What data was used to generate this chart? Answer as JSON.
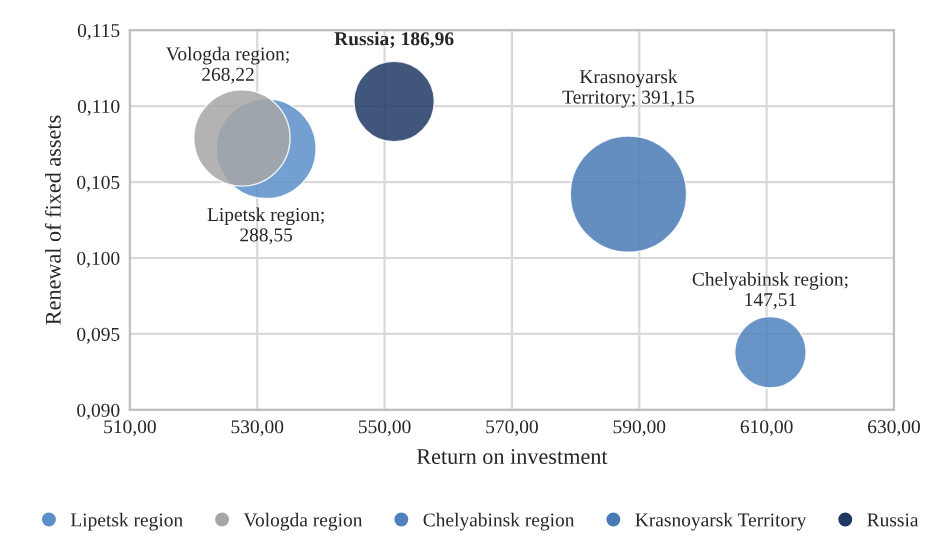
{
  "chart_data": {
    "type": "bubble",
    "xlabel": "Return on investment",
    "ylabel": "Renewal of fixed assets",
    "series": [
      {
        "name": "Lipetsk region",
        "color": "#5b8fc9",
        "x": [
          531.4
        ],
        "values": [
          0.1072
        ],
        "sizes": [
          288.55
        ],
        "value_labels": [
          "Lipetsk region;\n288,55"
        ]
      },
      {
        "name": "Vologda region",
        "color": "#a6a6a6",
        "x": [
          527.6
        ],
        "values": [
          0.1079
        ],
        "sizes": [
          268.22
        ],
        "value_labels": [
          "Vologda region;\n268,22"
        ]
      },
      {
        "name": "Chelyabinsk region",
        "color": "#4f81bd",
        "x": [
          610.6
        ],
        "values": [
          0.0938
        ],
        "sizes": [
          147.51
        ],
        "value_labels": [
          "Chelyabinsk region;\n147,51"
        ]
      },
      {
        "name": "Krasnoyarsk Territory",
        "color": "#4a7ab5",
        "x": [
          588.3
        ],
        "values": [
          0.1042
        ],
        "sizes": [
          391.15
        ],
        "value_labels": [
          "Krasnoyarsk\nTerritory; 391,15"
        ]
      },
      {
        "name": "Russia",
        "color": "#1f3864",
        "x": [
          551.5
        ],
        "values": [
          0.1103
        ],
        "sizes": [
          186.96
        ],
        "value_labels": [
          "Russia; 186,96"
        ]
      }
    ],
    "xlim": [
      510,
      630
    ],
    "ylim": [
      0.09,
      0.115
    ],
    "xticks": [
      {
        "value": 510,
        "label": "510,00"
      },
      {
        "value": 530,
        "label": "530,00"
      },
      {
        "value": 550,
        "label": "550,00"
      },
      {
        "value": 570,
        "label": "570,00"
      },
      {
        "value": 590,
        "label": "590,00"
      },
      {
        "value": 610,
        "label": "610,00"
      },
      {
        "value": 630,
        "label": "630,00"
      }
    ],
    "yticks": [
      {
        "value": 0.09,
        "label": "0,090"
      },
      {
        "value": 0.095,
        "label": "0,095"
      },
      {
        "value": 0.1,
        "label": "0,100"
      },
      {
        "value": 0.105,
        "label": "0,105"
      },
      {
        "value": 0.11,
        "label": "0,110"
      },
      {
        "value": 0.115,
        "label": "0,115"
      }
    ],
    "grid": true,
    "legend": "bottom",
    "marker": "circle"
  }
}
